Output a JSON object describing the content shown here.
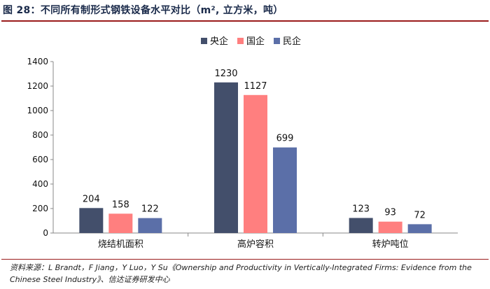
{
  "title": "图 28：不同所有制形式钢铁设备水平对比（m², 立方米，吨）",
  "source": "资料来源：L Brandt，F Jiang，Y Luo，Y Su《Ownership and Productivity in Vertically-Integrated Firms: Evidence from the Chinese Steel Industry》、信达证券研发中心",
  "chart_data": {
    "type": "bar",
    "title": "",
    "xlabel": "",
    "ylabel": "",
    "categories": [
      "烧结机面积",
      "高炉容积",
      "转炉吨位"
    ],
    "series": [
      {
        "name": "央企",
        "values": [
          204,
          1230,
          123
        ],
        "color": "#434f6b"
      },
      {
        "name": "国企",
        "values": [
          158,
          1127,
          93
        ],
        "color": "#ff7f7f"
      },
      {
        "name": "民企",
        "values": [
          122,
          699,
          72
        ],
        "color": "#5b6fa8"
      }
    ],
    "ylim": [
      0,
      1400
    ],
    "yticks": [
      "0",
      "200",
      "400",
      "600",
      "800",
      "1000",
      "1200",
      "1400"
    ],
    "grid": false,
    "legend_position": "top-center"
  }
}
